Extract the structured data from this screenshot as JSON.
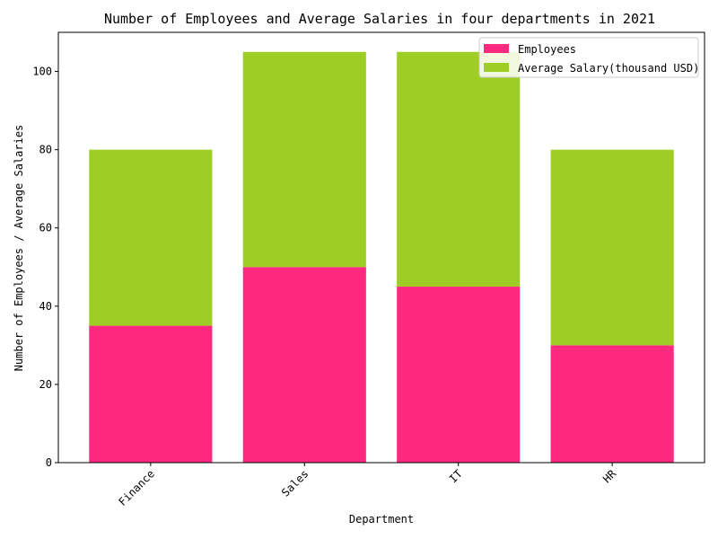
{
  "chart_data": {
    "type": "bar",
    "stacked": true,
    "title": "Number of Employees and Average Salaries in four departments in 2021",
    "xlabel": "Department",
    "ylabel": "Number of Employees / Average Salaries",
    "categories": [
      "Finance",
      "Sales",
      "IT",
      "HR"
    ],
    "series": [
      {
        "name": "Employees",
        "values": [
          35,
          50,
          45,
          30
        ],
        "color": "#ff2a7f"
      },
      {
        "name": "Average Salary(thousand USD)",
        "values": [
          45,
          55,
          60,
          50
        ],
        "color": "#9ecd23"
      }
    ],
    "ylim": [
      0,
      110
    ],
    "yticks": [
      0,
      20,
      40,
      60,
      80,
      100
    ],
    "grid": false,
    "legend_position": "top-right",
    "xtick_rotation": 45
  }
}
